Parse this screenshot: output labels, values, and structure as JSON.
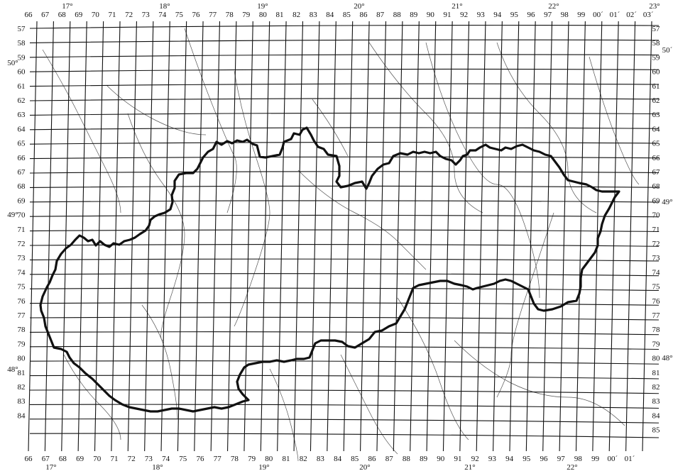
{
  "map": {
    "colors": {
      "ink": "#111111",
      "river": "#555555",
      "paper": "#ffffff"
    },
    "column_labels_top": [
      "66",
      "67",
      "68",
      "69",
      "70",
      "71",
      "72",
      "73",
      "74",
      "75",
      "76",
      "77",
      "78",
      "79",
      "80",
      "81",
      "82",
      "83",
      "84",
      "85",
      "86",
      "87",
      "88",
      "89",
      "90",
      "91",
      "92",
      "93",
      "94",
      "95",
      "96",
      "97",
      "98",
      "99",
      "00´",
      "01´",
      "02´",
      "03´"
    ],
    "column_labels_bottom": [
      "66",
      "67",
      "68",
      "69",
      "70",
      "71",
      "72",
      "73",
      "74",
      "75",
      "76",
      "77",
      "78",
      "79",
      "80",
      "81",
      "82",
      "83",
      "84",
      "85",
      "86",
      "87",
      "88",
      "89",
      "90",
      "91",
      "92",
      "93",
      "94",
      "95",
      "96",
      "97",
      "98",
      "99",
      "00´",
      "01´"
    ],
    "row_labels_left": [
      "57",
      "58",
      "59",
      "60",
      "61",
      "62",
      "63",
      "64",
      "65",
      "66",
      "67",
      "68",
      "69",
      "70",
      "71",
      "72",
      "73",
      "74",
      "75",
      "76",
      "77",
      "78",
      "79",
      "80",
      "81",
      "82",
      "83",
      "84"
    ],
    "row_labels_right": [
      "57",
      "58",
      "59",
      "60",
      "61",
      "62",
      "63",
      "64",
      "65",
      "66",
      "67",
      "68",
      "69",
      "70",
      "71",
      "72",
      "73",
      "74",
      "75",
      "76",
      "77",
      "78",
      "79",
      "80",
      "81",
      "82",
      "83",
      "84",
      "85"
    ],
    "longitude_labels_top": [
      "17°",
      "18°",
      "19°",
      "20°",
      "21°",
      "22°",
      "23°"
    ],
    "longitude_labels_bottom": [
      "17°",
      "18°",
      "19°",
      "20°",
      "21°",
      "22°"
    ],
    "latitude_labels_left": [
      "50°",
      "49°",
      "48°"
    ],
    "latitude_labels_right": [
      "50´",
      "49°",
      "48°"
    ]
  }
}
